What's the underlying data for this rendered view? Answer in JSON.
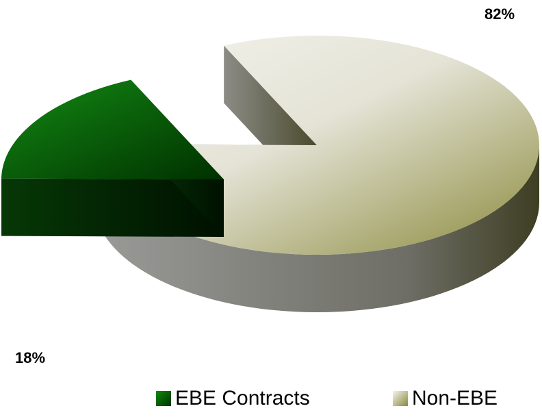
{
  "chart_data": {
    "type": "pie",
    "categories": [
      "EBE Contracts",
      "Non-EBE"
    ],
    "values": [
      18,
      82
    ],
    "data_labels": [
      "18%",
      "82%"
    ],
    "style": "3d-exploded",
    "legend_position": "bottom",
    "colors": {
      "EBE Contracts": "#0a6a0a",
      "Non-EBE": "#c9c8a8"
    }
  }
}
